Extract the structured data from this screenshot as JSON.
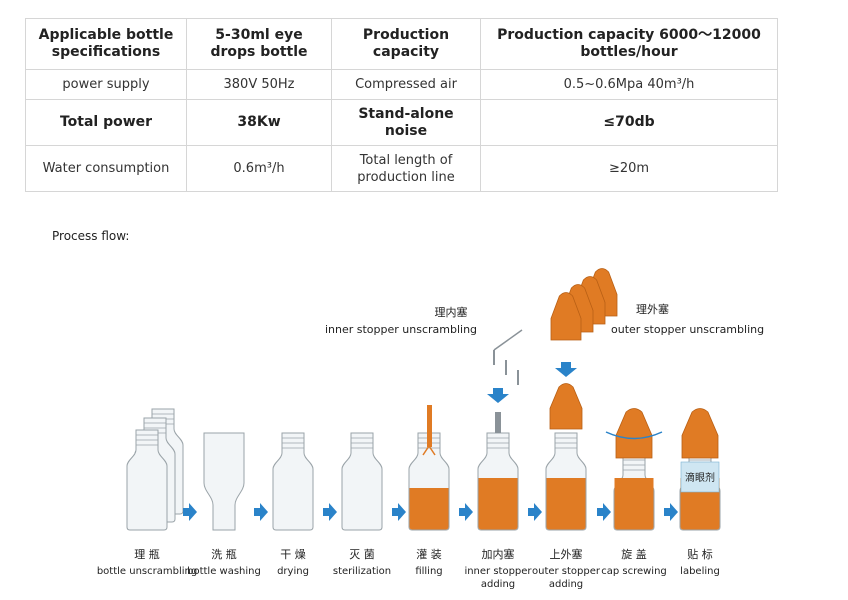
{
  "spec_table": {
    "rows": [
      [
        "Applicable bottle specifications",
        "5-30ml eye drops bottle",
        "Production capacity",
        "Production capacity 6000～12000 bottles/hour"
      ],
      [
        "power supply",
        "380V 50Hz",
        "Compressed air",
        "0.5~0.6Mpa 40m³/h"
      ],
      [
        "Total power",
        "38Kw",
        "Stand-alone noise",
        "≤70db"
      ],
      [
        "Water consumption",
        "0.6m³/h",
        "Total length of production line",
        "≥20m"
      ]
    ]
  },
  "process": {
    "title": "Process flow:",
    "inner_stopper_zh": "理内塞",
    "inner_stopper_en": "inner stopper unscrambling",
    "outer_stopper_zh": "理外塞",
    "outer_stopper_en": "outer stopper unscrambling",
    "bottle_label_text": "滴眼剂",
    "steps": [
      {
        "zh": "理 瓶",
        "en": [
          "bottle unscrambling"
        ]
      },
      {
        "zh": "洗 瓶",
        "en": [
          "bottle washing"
        ]
      },
      {
        "zh": "干 燥",
        "en": [
          "drying"
        ]
      },
      {
        "zh": "灭 菌",
        "en": [
          "sterilization"
        ]
      },
      {
        "zh": "灌 装",
        "en": [
          "filling"
        ]
      },
      {
        "zh": "加内塞",
        "en": [
          "inner stopper",
          "adding"
        ]
      },
      {
        "zh": "上外塞",
        "en": [
          "outer stopper",
          "adding"
        ]
      },
      {
        "zh": "旋 盖",
        "en": [
          "cap screwing"
        ]
      },
      {
        "zh": "贴 标",
        "en": [
          "labeling"
        ]
      }
    ],
    "colors": {
      "orange": "#e07b24",
      "arrow_blue": "#2a83c9",
      "bottle_fill": "#f2f5f7",
      "bottle_stroke": "#9aa3a8"
    }
  }
}
